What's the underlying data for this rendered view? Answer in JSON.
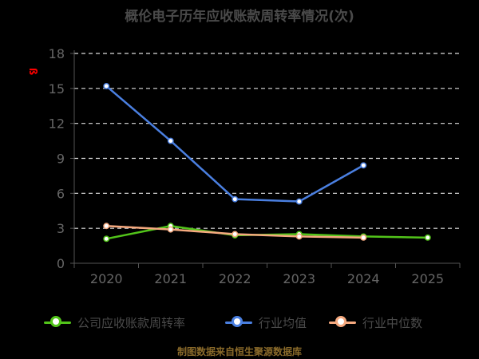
{
  "title": "概伦电子历年应收账款周转率情况(次)",
  "unit_mark": "ß",
  "source": "制图数据来自恒生聚源数据库",
  "colors": {
    "background": "#000000",
    "grid": "#dddddd",
    "axis": "#555555",
    "tick_text": "#666666",
    "company": "#52c41a",
    "industry_avg": "#4a7fe0",
    "industry_median": "#f5a97f"
  },
  "chart_data": {
    "type": "line",
    "title": "概伦电子历年应收账款周转率情况(次)",
    "categories": [
      "2020",
      "2021",
      "2022",
      "2023",
      "2024",
      "2025"
    ],
    "yticks": [
      "0",
      "3",
      "6",
      "9",
      "12",
      "15",
      "18"
    ],
    "ylim": [
      0,
      18
    ],
    "grid": true,
    "legend_position": "bottom",
    "series": [
      {
        "name": "公司应收账款周转率",
        "color": "#52c41a",
        "values": [
          2.1,
          3.2,
          2.4,
          2.5,
          2.3,
          2.2
        ]
      },
      {
        "name": "行业均值",
        "color": "#4a7fe0",
        "values": [
          15.2,
          10.5,
          5.5,
          5.3,
          8.4,
          null
        ]
      },
      {
        "name": "行业中位数",
        "color": "#f5a97f",
        "values": [
          3.2,
          2.9,
          2.5,
          2.3,
          2.2,
          null
        ]
      }
    ]
  }
}
